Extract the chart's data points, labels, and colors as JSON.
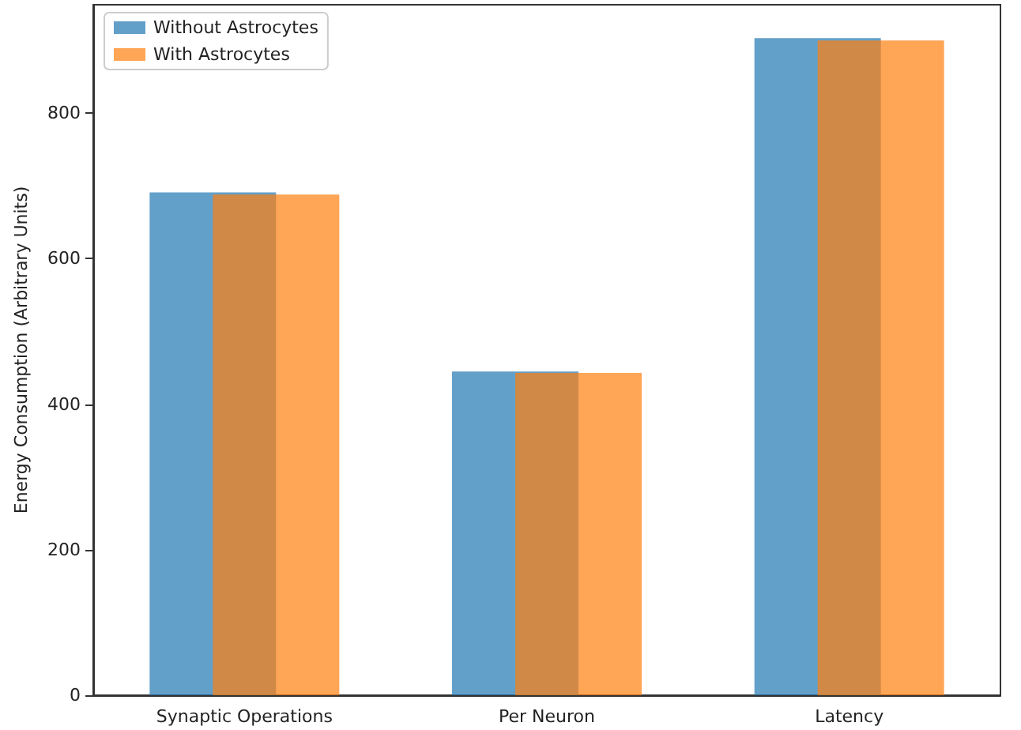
{
  "chart_data": {
    "type": "bar",
    "ylabel": "Energy Consumption (Arbitrary Units)",
    "categories": [
      "Synaptic Operations",
      "Per Neuron",
      "Latency"
    ],
    "series": [
      {
        "name": "Without Astrocytes",
        "color": "#1f77b4",
        "values": [
          691,
          445,
          903
        ]
      },
      {
        "name": "With Astrocytes",
        "color": "#ff7f0e",
        "values": [
          688,
          443,
          900
        ]
      }
    ],
    "ylim": [
      0,
      949
    ],
    "yticks": [
      0,
      200,
      400,
      600,
      800
    ],
    "legend": "top left",
    "grid": false
  }
}
